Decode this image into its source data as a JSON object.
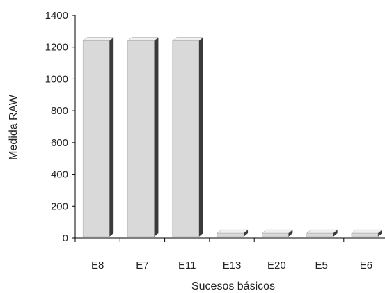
{
  "chart_data": {
    "type": "bar",
    "title": "",
    "xlabel": "Sucesos básicos",
    "ylabel": "Medida RAW",
    "categories": [
      "E8",
      "E7",
      "E11",
      "E13",
      "E20",
      "E5",
      "E6"
    ],
    "values": [
      1240,
      1240,
      1240,
      30,
      30,
      30,
      30
    ],
    "ylim": [
      0,
      1400
    ],
    "yticks": [
      "0",
      "200",
      "400",
      "600",
      "800",
      "1000",
      "1200",
      "1400"
    ],
    "grid": false,
    "legend": "none",
    "bar_style": "3d",
    "colors": {
      "bar_front": "#d9d9d9",
      "bar_top": "#f0f0f0",
      "bar_side": "#3a3a3a",
      "axis": "#000000"
    }
  }
}
